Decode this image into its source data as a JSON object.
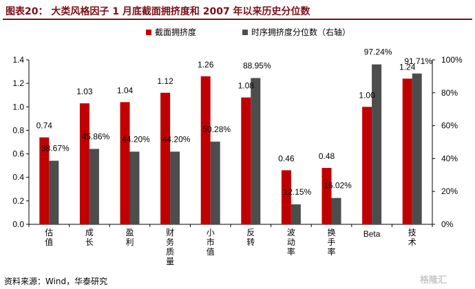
{
  "title": "图表20：   大类风格因子 1 月底截面拥挤度和 2007 年以来历史分位数",
  "source": "资料来源：Wind，华泰研究",
  "watermark": "格隆汇",
  "colors": {
    "red": "#c00000",
    "gray": "#4d4d4d",
    "title": "#7a0e16"
  },
  "chart_data": {
    "type": "bar",
    "categories": [
      "估值",
      "成长",
      "盈利",
      "财务质量",
      "小市值",
      "反转",
      "波动率",
      "换手率",
      "Beta",
      "技术"
    ],
    "series": [
      {
        "name": "截面拥挤度",
        "axis": "left",
        "values": [
          0.74,
          1.03,
          1.04,
          1.12,
          1.26,
          1.08,
          0.46,
          0.48,
          1.0,
          1.24
        ],
        "labels": [
          "0.74",
          "1.03",
          "1.04",
          "1.12",
          "1.26",
          "1.08",
          "0.46",
          "0.48",
          "1.00",
          "1.24"
        ]
      },
      {
        "name": "时序拥挤度分位数（右轴）",
        "axis": "right",
        "values": [
          38.67,
          45.86,
          44.2,
          44.2,
          50.28,
          88.95,
          12.15,
          16.02,
          97.24,
          91.71
        ],
        "labels": [
          "38.67%",
          "45.86%",
          "44.20%",
          "44.20%",
          "50.28%",
          "88.95%",
          "12.15%",
          "16.02%",
          "97.24%",
          "91.71%"
        ]
      }
    ],
    "y_left": {
      "range": [
        0,
        1.4
      ],
      "ticks": [
        "0.0",
        "0.2",
        "0.4",
        "0.6",
        "0.8",
        "1.0",
        "1.2",
        "1.4"
      ]
    },
    "y_right": {
      "range": [
        0,
        100
      ],
      "ticks": [
        "0%",
        "20%",
        "40%",
        "60%",
        "80%",
        "100%"
      ]
    },
    "legend_position": "top",
    "grid": false
  }
}
